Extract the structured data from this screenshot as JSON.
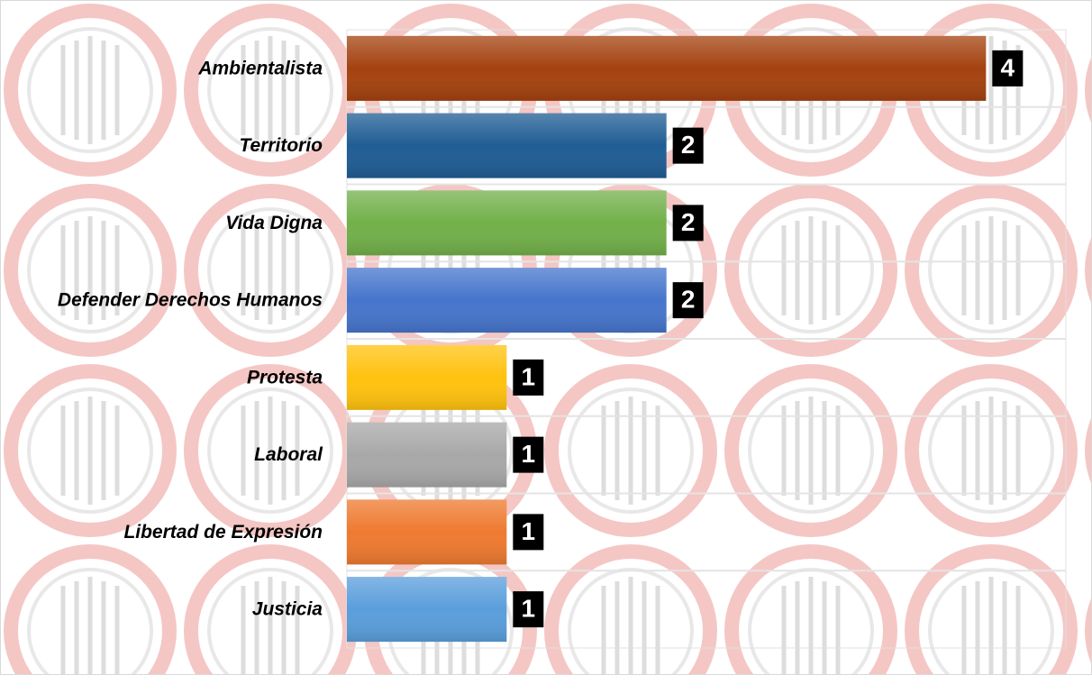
{
  "chart_data": {
    "type": "bar",
    "orientation": "horizontal",
    "categories": [
      "Ambientalista",
      "Territorio",
      "Vida Digna",
      "Defender Derechos Humanos",
      "Protesta",
      "Laboral",
      "Libertad de Expresión",
      "Justicia"
    ],
    "values": [
      4,
      2,
      2,
      2,
      1,
      1,
      1,
      1
    ],
    "colors": [
      "#a4420f",
      "#1f5d94",
      "#72b04a",
      "#4675cc",
      "#ffc20e",
      "#a8a8a8",
      "#ee7a30",
      "#5a9edc"
    ],
    "xlim": [
      0,
      4.5
    ]
  }
}
